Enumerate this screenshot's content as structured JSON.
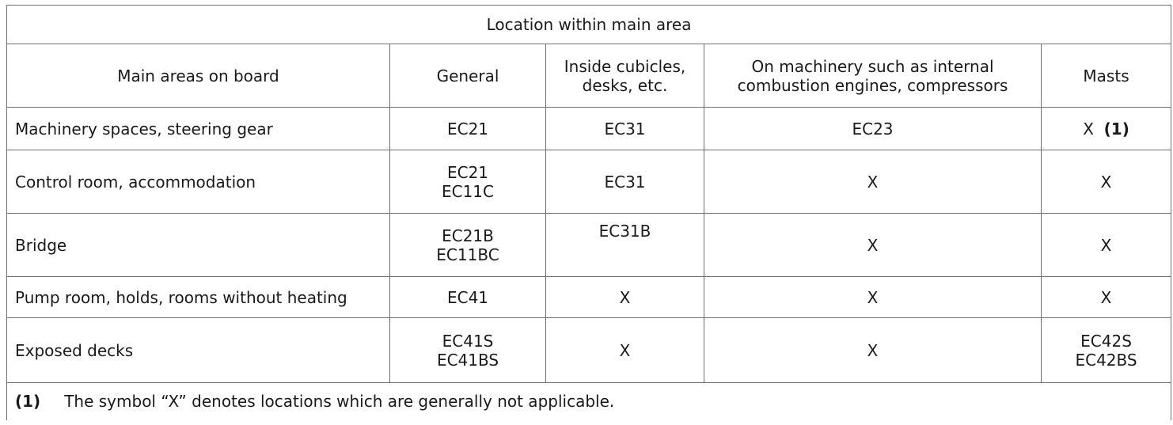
{
  "table": {
    "caption": "Location within main area",
    "headers": [
      "Main areas on board",
      "General",
      [
        "Inside cubicles,",
        "desks, etc."
      ],
      [
        "On machinery such as internal",
        "combustion engines, compressors"
      ],
      "Masts"
    ],
    "rows": [
      {
        "area": "Machinery spaces, steering gear",
        "general": [
          "EC21"
        ],
        "cubicles": [
          "EC31"
        ],
        "machinery": "EC23",
        "masts": "X",
        "masts_note": "(1)"
      },
      {
        "area": "Control room, accommodation",
        "general": [
          "EC21",
          "EC11C"
        ],
        "cubicles": [
          "EC31"
        ],
        "machinery": "X",
        "masts": "X"
      },
      {
        "area": "Bridge",
        "general": [
          "EC21B",
          "EC11BC"
        ],
        "cubicles": [
          "EC31B"
        ],
        "machinery": "X",
        "masts": "X"
      },
      {
        "area": "Pump room, holds, rooms without heating",
        "general": [
          "EC41"
        ],
        "cubicles": [
          "X"
        ],
        "machinery": "X",
        "masts": "X"
      },
      {
        "area": "Exposed decks",
        "general": [
          "EC41S",
          "EC41BS"
        ],
        "cubicles": [
          "X"
        ],
        "machinery": "X",
        "masts_lines": [
          "EC42S",
          "EC42BS"
        ]
      }
    ],
    "footnote": {
      "marker": "(1)",
      "text": "The symbol “X” denotes locations which are generally not applicable."
    }
  }
}
